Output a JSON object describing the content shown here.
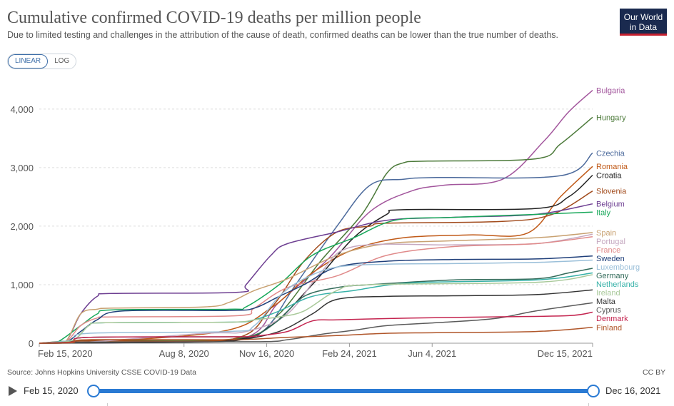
{
  "header": {
    "title": "Cumulative confirmed COVID-19 deaths per million people",
    "subtitle": "Due to limited testing and challenges in the attribution of the cause of death, confirmed deaths can be lower than the true number of deaths.",
    "logo_line1": "Our World",
    "logo_line2": "in Data"
  },
  "scale_toggle": {
    "linear": "LINEAR",
    "log": "LOG",
    "selected": "LINEAR"
  },
  "footer": {
    "source": "Source: Johns Hopkins University CSSE COVID-19 Data",
    "license": "CC BY"
  },
  "timeline": {
    "start": "Feb 15, 2020",
    "end": "Dec 16, 2021",
    "progress": 1.0
  },
  "chart_data": {
    "type": "line",
    "title": "Cumulative confirmed COVID-19 deaths per million people",
    "xlabel": "",
    "ylabel": "",
    "ylim": [
      0,
      4400
    ],
    "xlim_days": [
      0,
      669
    ],
    "x_ticks": [
      {
        "label": "Feb 15, 2020",
        "day": 0
      },
      {
        "label": "Aug 8, 2020",
        "day": 175
      },
      {
        "label": "Nov 16, 2020",
        "day": 275
      },
      {
        "label": "Feb 24, 2021",
        "day": 375
      },
      {
        "label": "Jun 4, 2021",
        "day": 475
      },
      {
        "label": "Dec 15, 2021",
        "day": 669
      }
    ],
    "y_ticks": [
      0,
      1000,
      2000,
      3000,
      4000
    ],
    "y_tick_labels": [
      "0",
      "1,000",
      "2,000",
      "3,000",
      "4,000"
    ],
    "grid": "horizontal-dashed",
    "legend": "right-end-labels",
    "series": [
      {
        "name": "Bulgaria",
        "color": "#a2559c",
        "x": [
          0,
          60,
          240,
          290,
          350,
          400,
          450,
          490,
          560,
          610,
          640,
          669
        ],
        "y": [
          0,
          5,
          60,
          700,
          1450,
          2250,
          2600,
          2700,
          2800,
          3450,
          3950,
          4320
        ]
      },
      {
        "name": "Hungary",
        "color": "#4c7a3a",
        "x": [
          0,
          60,
          240,
          290,
          340,
          390,
          420,
          440,
          470,
          600,
          630,
          669
        ],
        "y": [
          0,
          50,
          80,
          500,
          1400,
          2200,
          2900,
          3080,
          3110,
          3150,
          3400,
          3860
        ]
      },
      {
        "name": "Czechia",
        "color": "#4c6a9c",
        "x": [
          0,
          60,
          220,
          270,
          310,
          360,
          400,
          440,
          480,
          630,
          669
        ],
        "y": [
          0,
          10,
          40,
          200,
          1000,
          2000,
          2700,
          2800,
          2830,
          2860,
          3250
        ]
      },
      {
        "name": "Romania",
        "color": "#c05917",
        "x": [
          0,
          60,
          220,
          280,
          330,
          380,
          440,
          520,
          590,
          630,
          669
        ],
        "y": [
          0,
          20,
          200,
          600,
          1200,
          1600,
          1800,
          1850,
          1880,
          2500,
          3020
        ]
      },
      {
        "name": "Croatia",
        "color": "#222222",
        "x": [
          0,
          60,
          230,
          280,
          330,
          380,
          420,
          440,
          600,
          640,
          669
        ],
        "y": [
          0,
          5,
          50,
          300,
          1000,
          1800,
          2200,
          2280,
          2300,
          2500,
          2870
        ]
      },
      {
        "name": "Slovenia",
        "color": "#a14a1b",
        "x": [
          0,
          60,
          230,
          280,
          320,
          360,
          400,
          420,
          560,
          620,
          669
        ],
        "y": [
          0,
          40,
          60,
          600,
          1400,
          1900,
          2000,
          2050,
          2080,
          2200,
          2600
        ]
      },
      {
        "name": "Belgium",
        "color": "#6d3e91",
        "x": [
          0,
          30,
          50,
          70,
          90,
          240,
          250,
          280,
          300,
          360,
          420,
          500,
          600,
          669
        ],
        "y": [
          0,
          5,
          500,
          800,
          850,
          870,
          1000,
          1500,
          1700,
          1900,
          2100,
          2150,
          2200,
          2380
        ]
      },
      {
        "name": "Italy",
        "color": "#18a85a",
        "x": [
          0,
          20,
          50,
          70,
          90,
          230,
          250,
          290,
          330,
          380,
          430,
          500,
          600,
          669
        ],
        "y": [
          0,
          5,
          300,
          500,
          570,
          580,
          620,
          1000,
          1500,
          1800,
          2100,
          2150,
          2200,
          2240
        ]
      },
      {
        "name": "Spain",
        "color": "#c8a171",
        "x": [
          0,
          30,
          50,
          70,
          90,
          200,
          230,
          260,
          300,
          360,
          420,
          500,
          600,
          669
        ],
        "y": [
          0,
          5,
          500,
          580,
          600,
          620,
          700,
          900,
          1100,
          1500,
          1700,
          1750,
          1800,
          1890
        ]
      },
      {
        "name": "Portugal",
        "color": "#c5a8c0",
        "x": [
          0,
          60,
          200,
          250,
          300,
          340,
          380,
          500,
          600,
          669
        ],
        "y": [
          0,
          20,
          170,
          200,
          500,
          1200,
          1650,
          1680,
          1700,
          1860
        ]
      },
      {
        "name": "France",
        "color": "#e08a8a",
        "x": [
          0,
          30,
          50,
          70,
          90,
          240,
          260,
          300,
          360,
          420,
          500,
          600,
          669
        ],
        "y": [
          0,
          5,
          300,
          430,
          450,
          470,
          600,
          950,
          1150,
          1500,
          1650,
          1700,
          1820
        ]
      },
      {
        "name": "Sweden",
        "color": "#1f3f7a",
        "x": [
          0,
          30,
          50,
          70,
          100,
          230,
          260,
          290,
          320,
          360,
          420,
          500,
          600,
          669
        ],
        "y": [
          0,
          5,
          200,
          400,
          550,
          560,
          600,
          800,
          1000,
          1300,
          1400,
          1430,
          1440,
          1490
        ]
      },
      {
        "name": "Luxembourg",
        "color": "#9abfd9",
        "x": [
          0,
          40,
          60,
          230,
          260,
          290,
          320,
          360,
          420,
          500,
          600,
          669
        ],
        "y": [
          0,
          50,
          170,
          200,
          300,
          800,
          1100,
          1300,
          1350,
          1360,
          1380,
          1420
        ]
      },
      {
        "name": "Germany",
        "color": "#336b5a",
        "x": [
          0,
          40,
          60,
          230,
          260,
          290,
          320,
          360,
          400,
          500,
          600,
          640,
          669
        ],
        "y": [
          0,
          20,
          100,
          110,
          130,
          400,
          800,
          950,
          1000,
          1080,
          1100,
          1200,
          1280
        ]
      },
      {
        "name": "Netherlands",
        "color": "#36b1a8",
        "x": [
          0,
          40,
          60,
          80,
          230,
          260,
          290,
          330,
          380,
          450,
          600,
          669
        ],
        "y": [
          0,
          50,
          300,
          350,
          360,
          400,
          550,
          800,
          900,
          1030,
          1080,
          1200
        ]
      },
      {
        "name": "Ireland",
        "color": "#a9c99a",
        "x": [
          0,
          40,
          60,
          80,
          230,
          260,
          290,
          320,
          360,
          400,
          600,
          669
        ],
        "y": [
          0,
          50,
          300,
          350,
          360,
          400,
          450,
          550,
          900,
          1000,
          1040,
          1170
        ]
      },
      {
        "name": "Malta",
        "color": "#333333",
        "x": [
          0,
          60,
          200,
          240,
          290,
          330,
          360,
          420,
          500,
          600,
          669
        ],
        "y": [
          0,
          5,
          20,
          50,
          200,
          500,
          750,
          800,
          810,
          830,
          910
        ]
      },
      {
        "name": "Cyprus",
        "color": "#5a5a5a",
        "x": [
          0,
          60,
          260,
          300,
          340,
          380,
          420,
          480,
          550,
          600,
          669
        ],
        "y": [
          0,
          20,
          25,
          60,
          150,
          220,
          300,
          350,
          420,
          550,
          690
        ]
      },
      {
        "name": "Denmark",
        "color": "#c4244f",
        "x": [
          0,
          40,
          60,
          230,
          260,
          300,
          330,
          360,
          450,
          550,
          640,
          669
        ],
        "y": [
          0,
          20,
          100,
          110,
          120,
          200,
          380,
          400,
          430,
          450,
          470,
          530
        ]
      },
      {
        "name": "Finland",
        "color": "#b0562a",
        "x": [
          0,
          40,
          60,
          230,
          260,
          300,
          360,
          420,
          480,
          600,
          669
        ],
        "y": [
          0,
          10,
          60,
          60,
          70,
          100,
          130,
          170,
          180,
          200,
          270
        ]
      }
    ],
    "end_labels": [
      {
        "name": "Bulgaria"
      },
      {
        "name": "Hungary"
      },
      {
        "name": "Czechia"
      },
      {
        "name": "Romania"
      },
      {
        "name": "Croatia"
      },
      {
        "name": "Slovenia"
      },
      {
        "name": "Belgium"
      },
      {
        "name": "Italy"
      },
      {
        "name": "Spain"
      },
      {
        "name": "Portugal"
      },
      {
        "name": "France"
      },
      {
        "name": "Sweden"
      },
      {
        "name": "Luxembourg"
      },
      {
        "name": "Germany"
      },
      {
        "name": "Netherlands"
      },
      {
        "name": "Ireland"
      },
      {
        "name": "Malta"
      },
      {
        "name": "Cyprus"
      },
      {
        "name": "Denmark"
      },
      {
        "name": "Finland"
      }
    ]
  }
}
